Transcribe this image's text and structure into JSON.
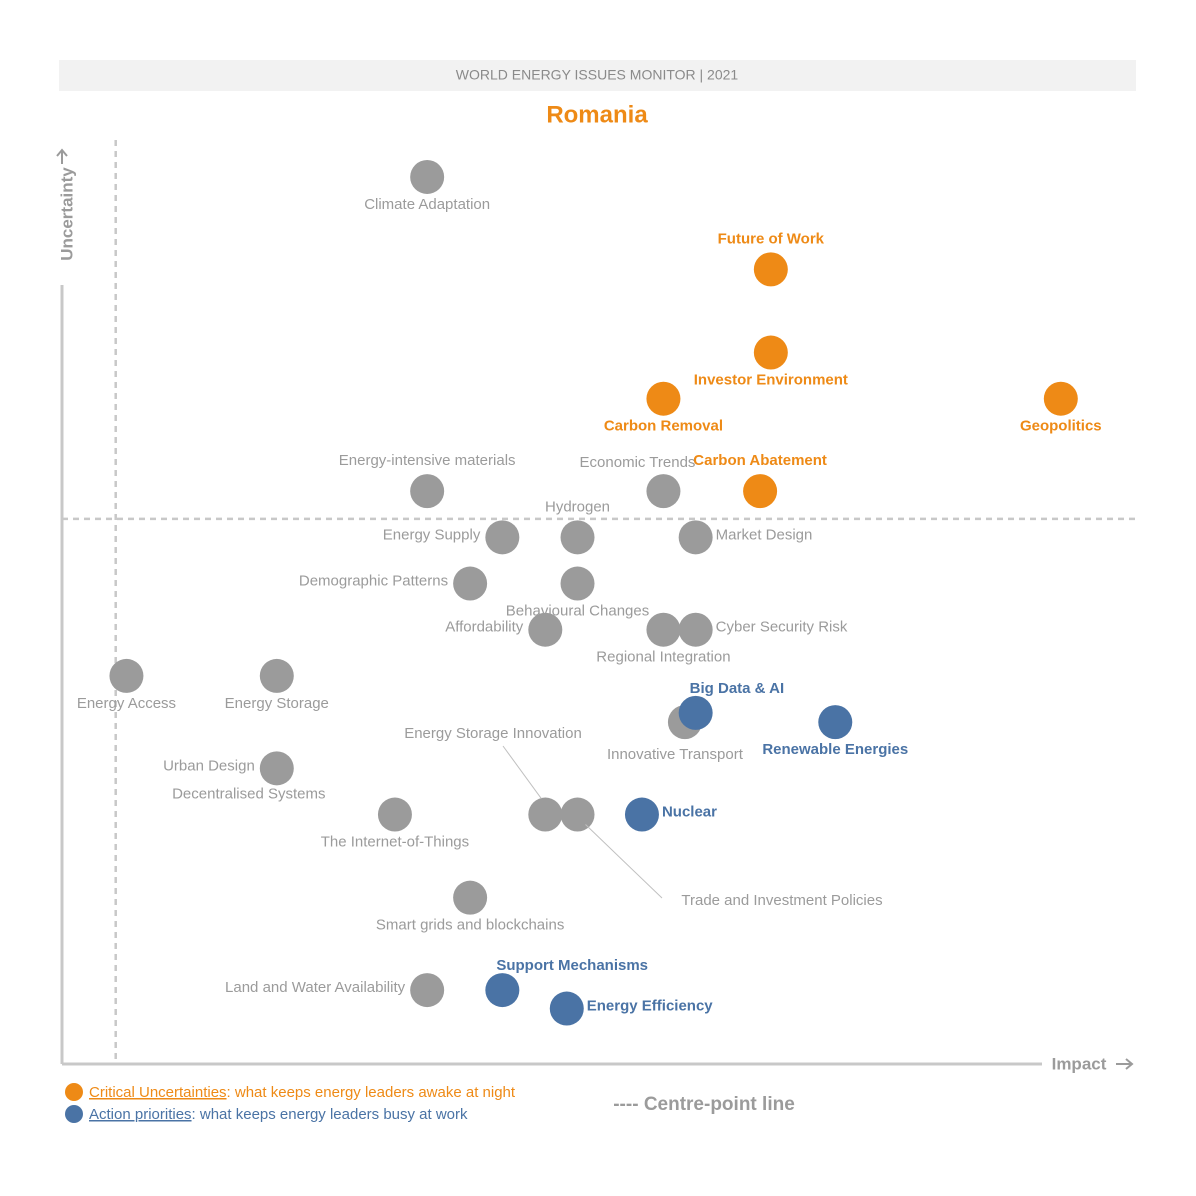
{
  "header": {
    "banner": "WORLD ENERGY ISSUES MONITOR | 2021",
    "country": "Romania"
  },
  "colors": {
    "critical": "#EE8A16",
    "action": "#4A73A5",
    "other": "#9B9B9B",
    "axis": "#C8C8C8",
    "banner_bg": "#F2F2F2",
    "banner_text": "#8A8A8A"
  },
  "axes": {
    "x_label": "Impact",
    "y_label": "Uncertainty",
    "centre_line_label": "---- Centre-point line"
  },
  "legend": [
    {
      "key": "critical",
      "title": "Critical Uncertainties",
      "desc": ": what keeps energy leaders awake at night"
    },
    {
      "key": "action",
      "title": "Action priorities",
      "desc": ": what keeps energy leaders busy at work"
    }
  ],
  "chart_data": {
    "type": "scatter",
    "title": "Romania",
    "xlabel": "Impact",
    "ylabel": "Uncertainty",
    "xlim": [
      0,
      1
    ],
    "ylim": [
      0,
      1
    ],
    "centre": {
      "x": 0.05,
      "y": 0.59
    },
    "points": [
      {
        "name": "Climate Adaptation",
        "x": 0.34,
        "y": 0.96,
        "group": "other",
        "label_pos": "below"
      },
      {
        "name": "Future of Work",
        "x": 0.66,
        "y": 0.86,
        "group": "critical",
        "label_pos": "above"
      },
      {
        "name": "Investor Environment",
        "x": 0.66,
        "y": 0.77,
        "group": "critical",
        "label_pos": "below"
      },
      {
        "name": "Carbon Removal",
        "x": 0.56,
        "y": 0.72,
        "group": "critical",
        "label_pos": "below"
      },
      {
        "name": "Geopolitics",
        "x": 0.93,
        "y": 0.72,
        "group": "critical",
        "label_pos": "below"
      },
      {
        "name": "Energy-intensive materials",
        "x": 0.34,
        "y": 0.62,
        "group": "other",
        "label_pos": "above"
      },
      {
        "name": "Economic Trends",
        "x": 0.56,
        "y": 0.62,
        "group": "other",
        "label_pos": "above-left"
      },
      {
        "name": "Carbon Abatement",
        "x": 0.65,
        "y": 0.62,
        "group": "critical",
        "label_pos": "above"
      },
      {
        "name": "Energy Supply",
        "x": 0.41,
        "y": 0.57,
        "group": "other",
        "label_pos": "left"
      },
      {
        "name": "Hydrogen",
        "x": 0.48,
        "y": 0.57,
        "group": "other",
        "label_pos": "above"
      },
      {
        "name": "Market Design",
        "x": 0.59,
        "y": 0.57,
        "group": "other",
        "label_pos": "right"
      },
      {
        "name": "Demographic Patterns",
        "x": 0.38,
        "y": 0.52,
        "group": "other",
        "label_pos": "left"
      },
      {
        "name": "Behavioural Changes",
        "x": 0.48,
        "y": 0.52,
        "group": "other",
        "label_pos": "below"
      },
      {
        "name": "Affordability",
        "x": 0.45,
        "y": 0.47,
        "group": "other",
        "label_pos": "left"
      },
      {
        "name": "Regional Integration",
        "x": 0.56,
        "y": 0.47,
        "group": "other",
        "label_pos": "below"
      },
      {
        "name": "Cyber Security Risk",
        "x": 0.59,
        "y": 0.47,
        "group": "other",
        "label_pos": "right"
      },
      {
        "name": "Energy Access",
        "x": 0.06,
        "y": 0.42,
        "group": "other",
        "label_pos": "below"
      },
      {
        "name": "Energy Storage",
        "x": 0.2,
        "y": 0.42,
        "group": "other",
        "label_pos": "below"
      },
      {
        "name": "Innovative Transport",
        "x": 0.58,
        "y": 0.37,
        "group": "other",
        "label_pos": "below-left"
      },
      {
        "name": "Big Data & AI",
        "x": 0.59,
        "y": 0.38,
        "group": "action",
        "label_pos": "above-right"
      },
      {
        "name": "Renewable Energies",
        "x": 0.72,
        "y": 0.37,
        "group": "action",
        "label_pos": "below"
      },
      {
        "name": "Urban Design",
        "x": 0.2,
        "y": 0.32,
        "group": "other",
        "label_pos": "urban"
      },
      {
        "name": "Decentralised Systems",
        "x": 0.2,
        "y": 0.32,
        "group": "other",
        "label_pos": "decentral"
      },
      {
        "name": "The Internet-of-Things",
        "x": 0.31,
        "y": 0.27,
        "group": "other",
        "label_pos": "below"
      },
      {
        "name": "Energy Storage Innovation",
        "x": 0.45,
        "y": 0.27,
        "group": "other",
        "label_pos": "leader-esi"
      },
      {
        "name": "Trade and Investment Policies",
        "x": 0.48,
        "y": 0.27,
        "group": "other",
        "label_pos": "leader-tip"
      },
      {
        "name": "Nuclear",
        "x": 0.54,
        "y": 0.27,
        "group": "action",
        "label_pos": "right"
      },
      {
        "name": "Smart grids and blockchains",
        "x": 0.38,
        "y": 0.18,
        "group": "other",
        "label_pos": "below"
      },
      {
        "name": "Support Mechanisms",
        "x": 0.41,
        "y": 0.08,
        "group": "action",
        "label_pos": "above-right"
      },
      {
        "name": "Land and Water Availability",
        "x": 0.34,
        "y": 0.08,
        "group": "other",
        "label_pos": "left"
      },
      {
        "name": "Energy Efficiency",
        "x": 0.47,
        "y": 0.06,
        "group": "action",
        "label_pos": "right"
      }
    ]
  }
}
